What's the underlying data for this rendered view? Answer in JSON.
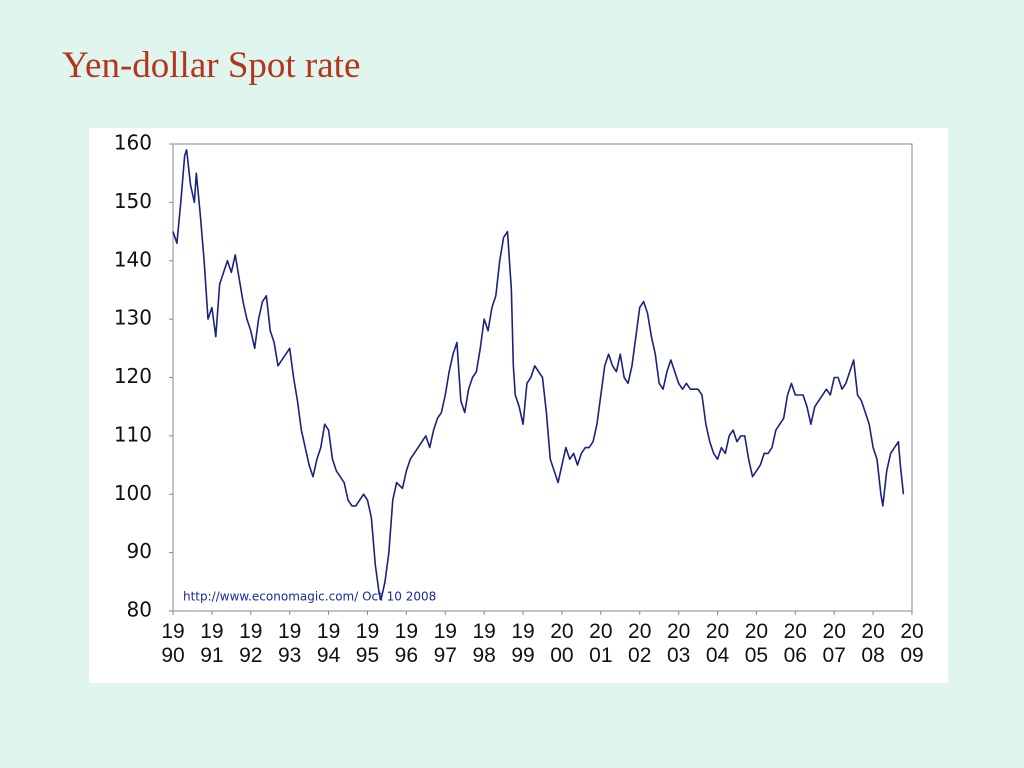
{
  "chart_data": {
    "type": "line",
    "title": "Yen-dollar Spot rate",
    "annotation": "http://www.economagic.com/   Oct 10 2008",
    "color": "#1a237e",
    "xlim": [
      1990,
      2009
    ],
    "xticks": [
      1990,
      1991,
      1992,
      1993,
      1994,
      1995,
      1996,
      1997,
      1998,
      1999,
      2000,
      2001,
      2002,
      2003,
      2004,
      2005,
      2006,
      2007,
      2008,
      2009
    ],
    "ylim": [
      80,
      160
    ],
    "yticks": [
      80,
      90,
      100,
      110,
      120,
      130,
      140,
      150,
      160
    ],
    "x": [
      1990.0,
      1990.1,
      1990.2,
      1990.3,
      1990.35,
      1990.45,
      1990.55,
      1990.6,
      1990.7,
      1990.8,
      1990.9,
      1991.0,
      1991.1,
      1991.2,
      1991.3,
      1991.4,
      1991.5,
      1991.6,
      1991.7,
      1991.8,
      1991.9,
      1992.0,
      1992.1,
      1992.2,
      1992.3,
      1992.4,
      1992.5,
      1992.6,
      1992.7,
      1992.8,
      1992.9,
      1993.0,
      1993.1,
      1993.2,
      1993.3,
      1993.4,
      1993.5,
      1993.6,
      1993.7,
      1993.8,
      1993.9,
      1994.0,
      1994.1,
      1994.2,
      1994.3,
      1994.4,
      1994.5,
      1994.6,
      1994.7,
      1994.8,
      1994.9,
      1995.0,
      1995.1,
      1995.2,
      1995.3,
      1995.35,
      1995.45,
      1995.55,
      1995.65,
      1995.75,
      1995.9,
      1996.0,
      1996.1,
      1996.2,
      1996.3,
      1996.4,
      1996.5,
      1996.6,
      1996.7,
      1996.8,
      1996.9,
      1997.0,
      1997.1,
      1997.2,
      1997.3,
      1997.4,
      1997.5,
      1997.6,
      1997.7,
      1997.8,
      1997.9,
      1998.0,
      1998.1,
      1998.2,
      1998.3,
      1998.4,
      1998.5,
      1998.6,
      1998.7,
      1998.75,
      1998.8,
      1998.9,
      1999.0,
      1999.1,
      1999.2,
      1999.3,
      1999.4,
      1999.5,
      1999.6,
      1999.7,
      1999.8,
      1999.9,
      2000.0,
      2000.1,
      2000.2,
      2000.3,
      2000.4,
      2000.5,
      2000.6,
      2000.7,
      2000.8,
      2000.9,
      2001.0,
      2001.1,
      2001.2,
      2001.3,
      2001.4,
      2001.5,
      2001.6,
      2001.7,
      2001.8,
      2001.9,
      2002.0,
      2002.1,
      2002.2,
      2002.3,
      2002.4,
      2002.5,
      2002.6,
      2002.7,
      2002.8,
      2002.9,
      2003.0,
      2003.1,
      2003.2,
      2003.3,
      2003.4,
      2003.5,
      2003.6,
      2003.7,
      2003.8,
      2003.9,
      2004.0,
      2004.1,
      2004.2,
      2004.3,
      2004.4,
      2004.5,
      2004.6,
      2004.7,
      2004.8,
      2004.9,
      2005.0,
      2005.1,
      2005.2,
      2005.3,
      2005.4,
      2005.5,
      2005.6,
      2005.7,
      2005.8,
      2005.9,
      2006.0,
      2006.1,
      2006.2,
      2006.3,
      2006.4,
      2006.5,
      2006.6,
      2006.7,
      2006.8,
      2006.9,
      2007.0,
      2007.1,
      2007.2,
      2007.3,
      2007.4,
      2007.5,
      2007.6,
      2007.7,
      2007.8,
      2007.9,
      2008.0,
      2008.1,
      2008.2,
      2008.25,
      2008.35,
      2008.45,
      2008.55,
      2008.65,
      2008.7,
      2008.78
    ],
    "values": [
      145,
      143,
      150,
      158,
      159,
      153,
      150,
      155,
      148,
      140,
      130,
      132,
      127,
      136,
      138,
      140,
      138,
      141,
      137,
      133,
      130,
      128,
      125,
      130,
      133,
      134,
      128,
      126,
      122,
      123,
      124,
      125,
      120,
      116,
      111,
      108,
      105,
      103,
      106,
      108,
      112,
      111,
      106,
      104,
      103,
      102,
      99,
      98,
      98,
      99,
      100,
      99,
      96,
      88,
      83,
      82,
      85,
      90,
      99,
      102,
      101,
      104,
      106,
      107,
      108,
      109,
      110,
      108,
      111,
      113,
      114,
      117,
      121,
      124,
      126,
      116,
      114,
      118,
      120,
      121,
      125,
      130,
      128,
      132,
      134,
      140,
      144,
      145,
      135,
      122,
      117,
      115,
      112,
      119,
      120,
      122,
      121,
      120,
      114,
      106,
      104,
      102,
      105,
      108,
      106,
      107,
      105,
      107,
      108,
      108,
      109,
      112,
      117,
      122,
      124,
      122,
      121,
      124,
      120,
      119,
      122,
      127,
      132,
      133,
      131,
      127,
      124,
      119,
      118,
      121,
      123,
      121,
      119,
      118,
      119,
      118,
      118,
      118,
      117,
      112,
      109,
      107,
      106,
      108,
      107,
      110,
      111,
      109,
      110,
      110,
      106,
      103,
      104,
      105,
      107,
      107,
      108,
      111,
      112,
      113,
      117,
      119,
      117,
      117,
      117,
      115,
      112,
      115,
      116,
      117,
      118,
      117,
      120,
      120,
      118,
      119,
      121,
      123,
      117,
      116,
      114,
      112,
      108,
      106,
      100,
      98,
      104,
      107,
      108,
      109,
      105,
      100
    ]
  }
}
